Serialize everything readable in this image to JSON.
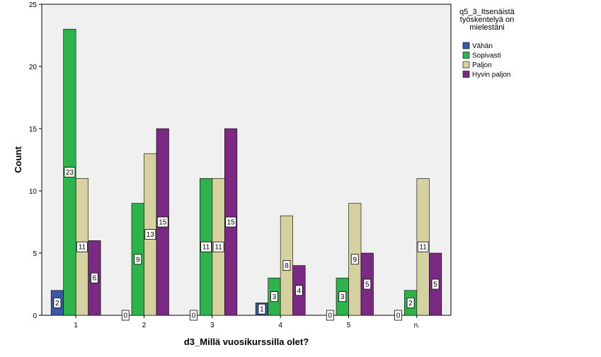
{
  "chart_data": {
    "type": "bar",
    "xlabel": "d3_Millä vuosikurssilla olet?",
    "ylabel": "Count",
    "categories": [
      "1",
      "2",
      "3",
      "4",
      "5",
      "n."
    ],
    "ylim": [
      0,
      25
    ],
    "yticks": [
      0,
      5,
      10,
      15,
      20,
      25
    ],
    "grid": false,
    "legend_position": "right",
    "legend_title_lines": [
      "q5_3_Itsenäistä",
      "työskentelyä on",
      "mielestäni"
    ],
    "series": [
      {
        "name": "Vähän",
        "color": "#3b57a6",
        "values": [
          2,
          0,
          0,
          1,
          0,
          0
        ]
      },
      {
        "name": "Sopivasti",
        "color": "#2db34a",
        "values": [
          23,
          9,
          11,
          3,
          3,
          2
        ]
      },
      {
        "name": "Paljon",
        "color": "#d6d1a1",
        "values": [
          11,
          13,
          11,
          8,
          9,
          11
        ]
      },
      {
        "name": "Hyvin paljon",
        "color": "#7a2a83",
        "values": [
          6,
          15,
          15,
          4,
          5,
          5
        ]
      }
    ],
    "plot_background": "#f0f0f0"
  }
}
